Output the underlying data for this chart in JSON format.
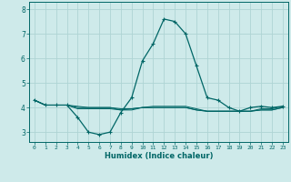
{
  "xlabel": "Humidex (Indice chaleur)",
  "bg_color": "#ceeaea",
  "line_color": "#006666",
  "grid_color": "#aed4d4",
  "xlim": [
    -0.5,
    23.5
  ],
  "ylim": [
    2.6,
    8.3
  ],
  "yticks": [
    3,
    4,
    5,
    6,
    7,
    8
  ],
  "xticks": [
    0,
    1,
    2,
    3,
    4,
    5,
    6,
    7,
    8,
    9,
    10,
    11,
    12,
    13,
    14,
    15,
    16,
    17,
    18,
    19,
    20,
    21,
    22,
    23
  ],
  "series": [
    [
      4.3,
      4.1,
      4.1,
      4.1,
      3.6,
      3.0,
      2.9,
      3.0,
      3.8,
      4.4,
      5.9,
      6.6,
      7.6,
      7.5,
      7.0,
      5.7,
      4.4,
      4.3,
      4.0,
      3.85,
      4.0,
      4.05,
      4.0,
      4.05
    ],
    [
      4.3,
      4.1,
      4.1,
      4.1,
      4.05,
      4.0,
      4.0,
      4.0,
      3.9,
      3.9,
      4.0,
      4.0,
      4.0,
      4.0,
      4.0,
      3.9,
      3.85,
      3.85,
      3.85,
      3.85,
      3.85,
      3.9,
      3.9,
      4.0
    ],
    [
      4.3,
      4.1,
      4.1,
      4.1,
      3.95,
      3.95,
      3.95,
      3.95,
      3.9,
      3.95,
      4.0,
      4.05,
      4.05,
      4.05,
      4.05,
      3.95,
      3.85,
      3.85,
      3.85,
      3.85,
      3.85,
      3.95,
      3.95,
      4.05
    ],
    [
      4.3,
      4.1,
      4.1,
      4.1,
      4.0,
      4.0,
      4.0,
      4.0,
      3.95,
      3.95,
      4.0,
      4.0,
      4.0,
      4.0,
      4.0,
      3.9,
      3.85,
      3.85,
      3.85,
      3.85,
      3.85,
      3.9,
      3.9,
      4.0
    ]
  ]
}
